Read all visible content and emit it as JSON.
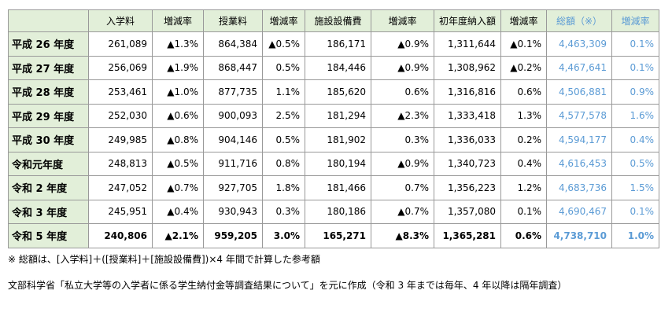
{
  "table": {
    "header": [
      "",
      "入学料",
      "増減率",
      "授業料",
      "増減率",
      "施設設備費",
      "増減率",
      "初年度納入額",
      "増減率",
      "総額（※）",
      "増減率"
    ],
    "rows": [
      [
        "平成 26 年度",
        "261,089",
        "▲1.3%",
        "864,384",
        "▲0.5%",
        "186,171",
        "▲0.9%",
        "1,311,644",
        "▲0.1%",
        "4,463,309",
        "0.1%"
      ],
      [
        "平成 27 年度",
        "256,069",
        "▲1.9%",
        "868,447",
        "0.5%",
        "184,446",
        "▲0.9%",
        "1,308,962",
        "▲0.2%",
        "4,467,641",
        "0.1%"
      ],
      [
        "平成 28 年度",
        "253,461",
        "▲1.0%",
        "877,735",
        "1.1%",
        "185,620",
        "0.6%",
        "1,316,816",
        "0.6%",
        "4,506,881",
        "0.9%"
      ],
      [
        "平成 29 年度",
        "252,030",
        "▲0.6%",
        "900,093",
        "2.5%",
        "181,294",
        "▲2.3%",
        "1,333,418",
        "1.3%",
        "4,577,578",
        "1.6%"
      ],
      [
        "平成 30 年度",
        "249,985",
        "▲0.8%",
        "904,146",
        "0.5%",
        "181,902",
        "0.3%",
        "1,336,033",
        "0.2%",
        "4,594,177",
        "0.4%"
      ],
      [
        "令和元年度",
        "248,813",
        "▲0.5%",
        "911,716",
        "0.8%",
        "180,194",
        "▲0.9%",
        "1,340,723",
        "0.4%",
        "4,616,453",
        "0.5%"
      ],
      [
        "令和 2 年度",
        "247,052",
        "▲0.7%",
        "927,705",
        "1.8%",
        "181,466",
        "0.7%",
        "1,356,223",
        "1.2%",
        "4,683,736",
        "1.5%"
      ],
      [
        "令和 3 年度",
        "245,951",
        "▲0.4%",
        "930,943",
        "0.3%",
        "180,186",
        "▲0.7%",
        "1,357,080",
        "0.1%",
        "4,690,467",
        "0.1%"
      ],
      [
        "令和 5 年度",
        "240,806",
        "▲2.1%",
        "959,205",
        "3.0%",
        "165,271",
        "▲8.3%",
        "1,365,281",
        "0.6%",
        "4,738,710",
        "1.0%"
      ]
    ]
  },
  "notes": [
    "※ 総額は、[入学料]＋([授業料]＋[施設設備費])×4 年間で計算した参考額",
    "文部科学省「私立大学等の入学者に係る学生納付金等調査結果について」を元に作成（令和 3 年までは毎年、4 年以降は隔年調査）"
  ]
}
